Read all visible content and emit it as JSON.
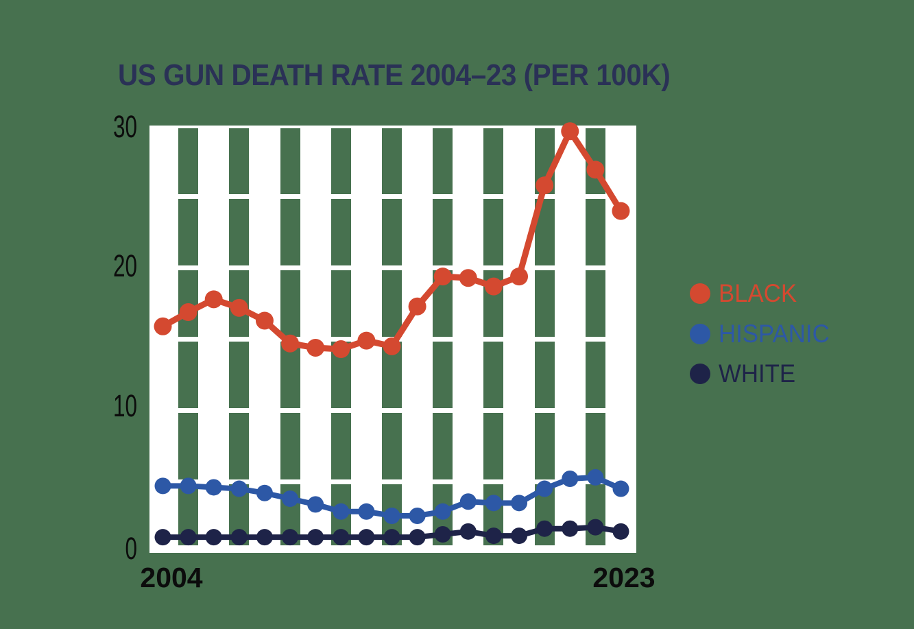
{
  "title": "US GUN DEATH RATE 2004–23 (PER 100K)",
  "colors": {
    "background": "#47714f",
    "plot_background": "#ffffff",
    "title_text": "#2a3156",
    "tick_text": "#0c0c0c",
    "black_series": "#d44930",
    "hispanic_series": "#2d58a6",
    "white_series": "#1e2348"
  },
  "y_axis": {
    "tick_labels": [
      "30",
      "20",
      "10",
      "0"
    ]
  },
  "x_axis": {
    "tick_labels": [
      "2004",
      "2023"
    ]
  },
  "legend": {
    "position": "right",
    "items": [
      {
        "label": "BLACK",
        "color": "#d44930"
      },
      {
        "label": "HISPANIC",
        "color": "#2d58a6"
      },
      {
        "label": "WHITE",
        "color": "#1e2348"
      }
    ]
  },
  "chart_data": {
    "type": "line",
    "title": "US GUN DEATH RATE 2004–23 (PER 100K)",
    "x": [
      2004,
      2005,
      2006,
      2007,
      2008,
      2009,
      2010,
      2011,
      2012,
      2013,
      2014,
      2015,
      2016,
      2017,
      2018,
      2019,
      2020,
      2021,
      2022
    ],
    "x_tick_labels_shown": [
      "2004",
      "2023"
    ],
    "xlabel": "",
    "ylabel": "",
    "ylim": [
      0,
      30
    ],
    "y_gridline_values": [
      25,
      20,
      15,
      10,
      5
    ],
    "grid": "horizontal white gridlines every 5 units; vertical green stripes between alternate points",
    "legend_position": "right",
    "series": [
      {
        "name": "BLACK",
        "color": "#d44930",
        "values": [
          15.9,
          16.9,
          17.8,
          17.2,
          16.3,
          14.7,
          14.4,
          14.3,
          14.9,
          14.5,
          17.3,
          19.4,
          19.3,
          18.7,
          19.4,
          25.8,
          29.6,
          26.9,
          24.0
        ]
      },
      {
        "name": "HISPANIC",
        "color": "#2d58a6",
        "values": [
          4.7,
          4.7,
          4.6,
          4.5,
          4.2,
          3.8,
          3.4,
          2.9,
          2.9,
          2.6,
          2.6,
          2.9,
          3.6,
          3.5,
          3.5,
          4.5,
          5.2,
          5.3,
          4.5
        ]
      },
      {
        "name": "WHITE",
        "color": "#1e2348",
        "values": [
          1.1,
          1.1,
          1.1,
          1.1,
          1.1,
          1.1,
          1.1,
          1.1,
          1.1,
          1.1,
          1.1,
          1.3,
          1.5,
          1.2,
          1.2,
          1.7,
          1.7,
          1.8,
          1.5
        ]
      }
    ]
  }
}
